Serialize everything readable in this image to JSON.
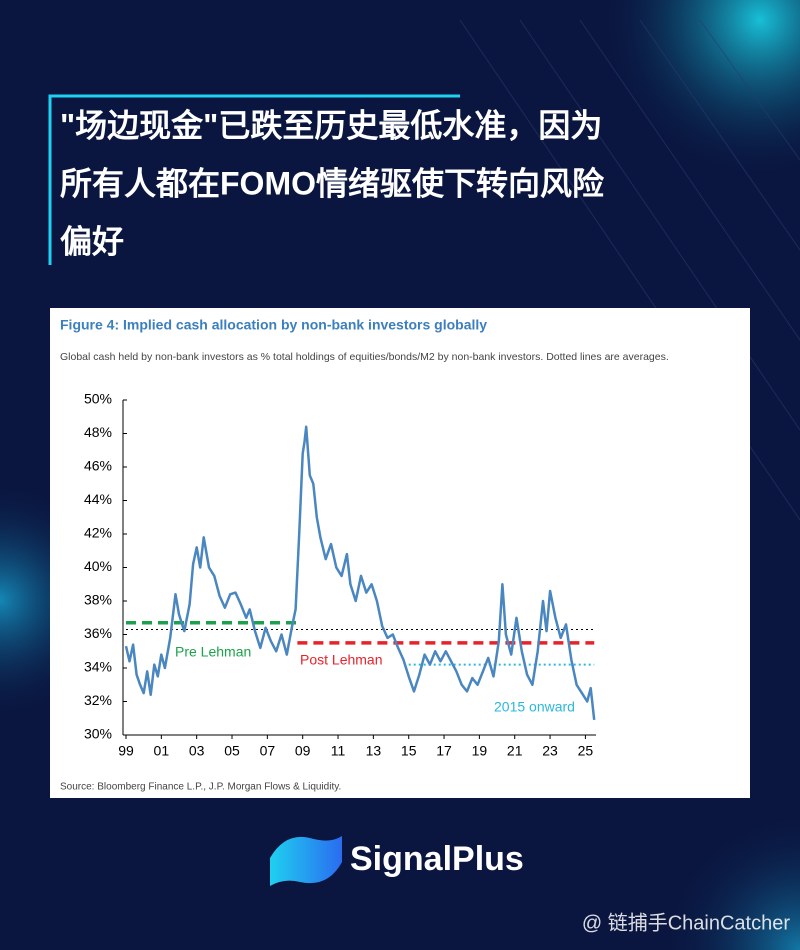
{
  "header": {
    "title_lines": [
      "\"场边现金\"已跌至历史最低水准，因为",
      "所有人都在FOMO情绪驱使下转向风险",
      "偏好"
    ]
  },
  "chart_data": {
    "type": "line",
    "title": "Figure 4: Implied cash allocation by non-bank investors globally",
    "subtitle": "Global cash held by non-bank investors as % total holdings of equities/bonds/M2 by non-bank investors. Dotted lines are averages.",
    "source": "Source: Bloomberg Finance L.P., J.P. Morgan Flows & Liquidity.",
    "xlim": [
      1999,
      2025.6
    ],
    "xticks": [
      {
        "value": 1999,
        "label": "99"
      },
      {
        "value": 2001,
        "label": "01"
      },
      {
        "value": 2003,
        "label": "03"
      },
      {
        "value": 2005,
        "label": "05"
      },
      {
        "value": 2007,
        "label": "07"
      },
      {
        "value": 2009,
        "label": "09"
      },
      {
        "value": 2011,
        "label": "11"
      },
      {
        "value": 2013,
        "label": "13"
      },
      {
        "value": 2015,
        "label": "15"
      },
      {
        "value": 2017,
        "label": "17"
      },
      {
        "value": 2019,
        "label": "19"
      },
      {
        "value": 2021,
        "label": "21"
      },
      {
        "value": 2023,
        "label": "23"
      },
      {
        "value": 2025,
        "label": "25"
      }
    ],
    "ylim": [
      30,
      50
    ],
    "yticks": [
      {
        "value": 30,
        "label": "30%"
      },
      {
        "value": 32,
        "label": "32%"
      },
      {
        "value": 34,
        "label": "34%"
      },
      {
        "value": 36,
        "label": "36%"
      },
      {
        "value": 38,
        "label": "38%"
      },
      {
        "value": 40,
        "label": "40%"
      },
      {
        "value": 42,
        "label": "42%"
      },
      {
        "value": 44,
        "label": "44%"
      },
      {
        "value": 46,
        "label": "46%"
      },
      {
        "value": 48,
        "label": "48%"
      },
      {
        "value": 50,
        "label": "50%"
      }
    ],
    "x": [
      1999.0,
      1999.2,
      1999.4,
      1999.6,
      1999.8,
      2000.0,
      2000.2,
      2000.4,
      2000.6,
      2000.8,
      2001.0,
      2001.2,
      2001.5,
      2001.8,
      2002.0,
      2002.3,
      2002.6,
      2002.8,
      2003.0,
      2003.2,
      2003.4,
      2003.7,
      2004.0,
      2004.3,
      2004.6,
      2004.9,
      2005.2,
      2005.5,
      2005.8,
      2006.0,
      2006.3,
      2006.6,
      2006.9,
      2007.2,
      2007.5,
      2007.8,
      2008.1,
      2008.4,
      2008.6,
      2008.8,
      2009.0,
      2009.1,
      2009.2,
      2009.4,
      2009.6,
      2009.8,
      2010.0,
      2010.3,
      2010.6,
      2010.9,
      2011.2,
      2011.5,
      2011.7,
      2012.0,
      2012.3,
      2012.6,
      2012.9,
      2013.2,
      2013.5,
      2013.8,
      2014.1,
      2014.4,
      2014.7,
      2015.0,
      2015.3,
      2015.6,
      2015.9,
      2016.2,
      2016.5,
      2016.8,
      2017.1,
      2017.4,
      2017.7,
      2018.0,
      2018.3,
      2018.6,
      2018.9,
      2019.2,
      2019.5,
      2019.8,
      2020.1,
      2020.3,
      2020.5,
      2020.8,
      2021.1,
      2021.4,
      2021.7,
      2022.0,
      2022.3,
      2022.6,
      2022.8,
      2023.0,
      2023.3,
      2023.6,
      2023.9,
      2024.2,
      2024.5,
      2024.8,
      2025.1,
      2025.3,
      2025.5
    ],
    "series": [
      {
        "color": "#4a86c0",
        "values": [
          35.3,
          34.4,
          35.4,
          33.6,
          33.0,
          32.5,
          33.8,
          32.4,
          34.2,
          33.5,
          34.8,
          34.0,
          35.8,
          38.4,
          37.2,
          36.2,
          37.8,
          40.2,
          41.2,
          40.0,
          41.8,
          40.0,
          39.5,
          38.3,
          37.6,
          38.4,
          38.5,
          37.8,
          37.0,
          37.5,
          36.2,
          35.2,
          36.4,
          35.6,
          35.0,
          36.0,
          34.8,
          36.5,
          37.5,
          42.0,
          46.8,
          47.5,
          48.4,
          45.5,
          45.0,
          43.0,
          41.8,
          40.5,
          41.4,
          40.0,
          39.5,
          40.8,
          39.0,
          38.0,
          39.5,
          38.5,
          39.0,
          38.0,
          36.5,
          35.8,
          36.0,
          35.2,
          34.5,
          33.5,
          32.6,
          33.6,
          34.8,
          34.2,
          35.0,
          34.4,
          35.0,
          34.4,
          33.8,
          33.0,
          32.6,
          33.4,
          33.0,
          33.8,
          34.6,
          33.5,
          35.6,
          39.0,
          36.0,
          34.8,
          37.0,
          35.0,
          33.6,
          33.0,
          35.0,
          38.0,
          36.2,
          38.6,
          37.0,
          35.8,
          36.6,
          34.5,
          33.0,
          32.5,
          32.0,
          32.8,
          30.9
        ]
      }
    ],
    "reference_lines": [
      {
        "value": 36.3,
        "x": [
          1999,
          2025.5
        ],
        "color": "#000000",
        "style": "dotted"
      },
      {
        "name": "Pre Lehman",
        "value": 36.7,
        "x": [
          1999,
          2008.7
        ],
        "color": "#1aa34a",
        "style": "dashed"
      },
      {
        "name": "Post Lehman",
        "value": 35.5,
        "x": [
          2008.7,
          2025.5
        ],
        "color": "#e8222a",
        "style": "dashed"
      },
      {
        "name": "2015 onward",
        "value": 34.2,
        "x": [
          2015,
          2025.5
        ],
        "color": "#2bb8dd",
        "style": "dotted"
      }
    ]
  },
  "logo": {
    "text": "SignalPlus"
  },
  "watermark": "@ 链捕手ChainCatcher"
}
